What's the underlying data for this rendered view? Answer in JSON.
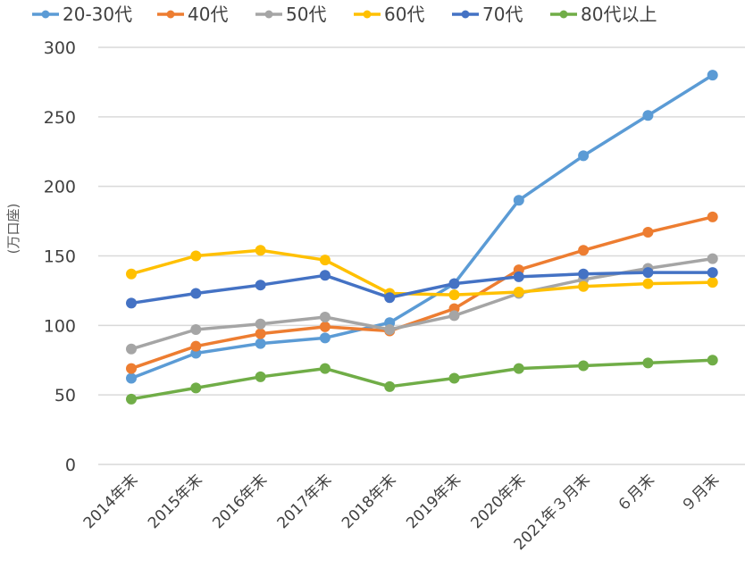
{
  "chart_data": {
    "type": "line",
    "title": "",
    "xlabel": "",
    "ylabel": "(万口座)",
    "ylim": [
      0,
      300
    ],
    "yticks": [
      0,
      50,
      100,
      150,
      200,
      250,
      300
    ],
    "grid": true,
    "legend_position": "top",
    "categories": [
      "2014年末",
      "2015年末",
      "2016年末",
      "2017年末",
      "2018年末",
      "2019年末",
      "2020年末",
      "2021年３月末",
      "６月末",
      "９月末"
    ],
    "series": [
      {
        "name": "20-30代",
        "color": "#5B9BD5",
        "values": [
          62,
          80,
          87,
          91,
          102,
          130,
          190,
          222,
          251,
          280
        ]
      },
      {
        "name": "40代",
        "color": "#ED7D31",
        "values": [
          69,
          85,
          94,
          99,
          96,
          112,
          140,
          154,
          167,
          178
        ]
      },
      {
        "name": "50代",
        "color": "#A5A5A5",
        "values": [
          83,
          97,
          101,
          106,
          97,
          107,
          123,
          133,
          141,
          148
        ]
      },
      {
        "name": "60代",
        "color": "#FFC000",
        "values": [
          137,
          150,
          154,
          147,
          123,
          122,
          124,
          128,
          130,
          131
        ]
      },
      {
        "name": "70代",
        "color": "#4472C4",
        "values": [
          116,
          123,
          129,
          136,
          120,
          130,
          135,
          137,
          138,
          138
        ]
      },
      {
        "name": "80代以上",
        "color": "#70AD47",
        "values": [
          47,
          55,
          63,
          69,
          56,
          62,
          69,
          71,
          73,
          75
        ]
      }
    ]
  }
}
